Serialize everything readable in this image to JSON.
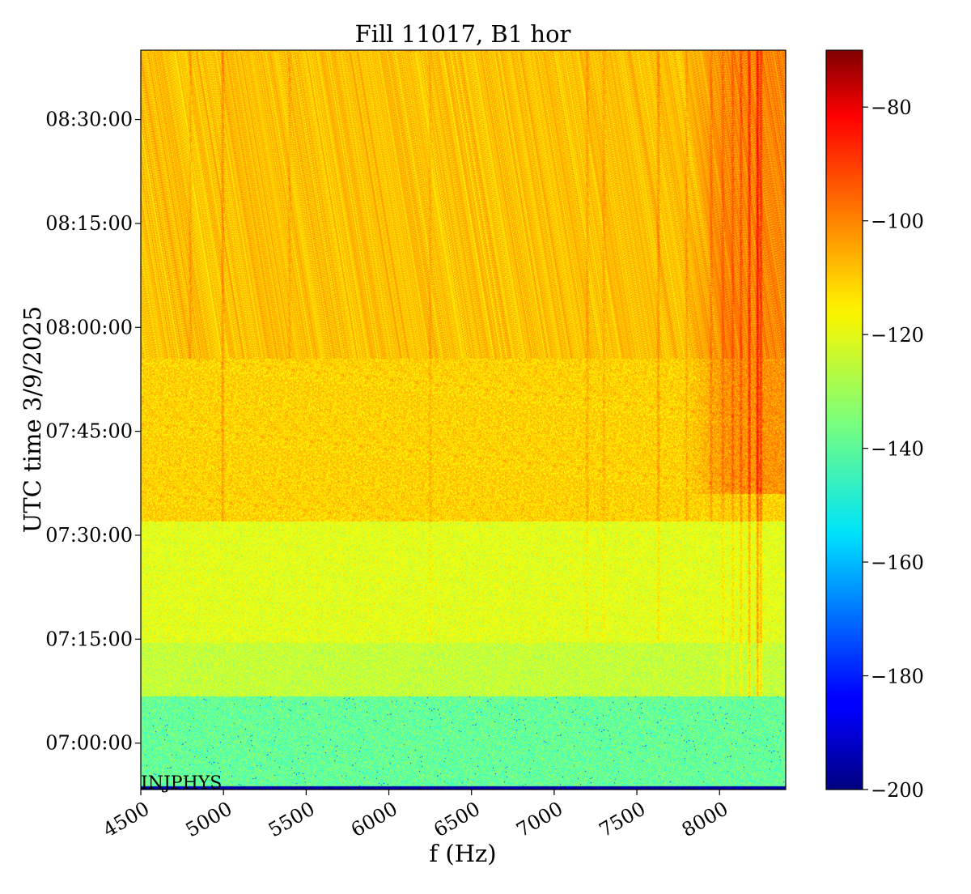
{
  "chart_data": {
    "type": "heatmap",
    "title": "Fill 11017, B1 hor",
    "xlabel": "f (Hz)",
    "ylabel": "UTC time 3/9/2025",
    "annotation": "INJPHYS",
    "x_ticks": [
      4500,
      5000,
      5500,
      6000,
      6500,
      7000,
      7500,
      8000
    ],
    "xlim": [
      4500,
      8400
    ],
    "y_ticks": [
      {
        "value": 0,
        "label": "07:00:00"
      },
      {
        "value": 15,
        "label": "07:15:00"
      },
      {
        "value": 30,
        "label": "07:30:00"
      },
      {
        "value": 45,
        "label": "07:45:00"
      },
      {
        "value": 60,
        "label": "08:00:00"
      },
      {
        "value": 75,
        "label": "08:15:00"
      },
      {
        "value": 90,
        "label": "08:30:00"
      }
    ],
    "y_unit": "minutes after 07:00:00 UTC",
    "ylim": [
      -6.7,
      100
    ],
    "colorbar": {
      "colormap": "jet",
      "range": [
        -200,
        -70
      ],
      "ticks": [
        -80,
        -100,
        -120,
        -140,
        -160,
        -180,
        -200
      ]
    },
    "grid": false,
    "time_bands": [
      {
        "t_start": -6.7,
        "t_end": -6.2,
        "level": -195
      },
      {
        "t_start": -6.2,
        "t_end": 6.7,
        "level": -138
      },
      {
        "t_start": 6.7,
        "t_end": 14.5,
        "level": -126
      },
      {
        "t_start": 14.5,
        "t_end": 32,
        "level": -122
      },
      {
        "t_start": 32,
        "t_end": 55.5,
        "level": -113
      },
      {
        "t_start": 55.5,
        "t_end": 100,
        "level": -111
      }
    ],
    "spectral_lines": [
      {
        "f": 4800,
        "boost": 5,
        "t_start": 55.5,
        "t_end": 100
      },
      {
        "f": 4995,
        "boost": 8,
        "t_start": 32,
        "t_end": 100
      },
      {
        "f": 5400,
        "boost": 4,
        "t_start": 55.5,
        "t_end": 100
      },
      {
        "f": 6250,
        "boost": 4,
        "t_start": 14.5,
        "t_end": 100
      },
      {
        "f": 7200,
        "boost": 5,
        "t_start": 14.5,
        "t_end": 100
      },
      {
        "f": 7300,
        "boost": 4,
        "t_start": 14.5,
        "t_end": 100
      },
      {
        "f": 7630,
        "boost": 7,
        "t_start": 14.5,
        "t_end": 100
      },
      {
        "f": 7800,
        "boost": 5,
        "t_start": 32,
        "t_end": 100
      },
      {
        "f": 7950,
        "boost": 6,
        "t_start": 32,
        "t_end": 100
      },
      {
        "f": 8020,
        "boost": 6,
        "t_start": 6.7,
        "t_end": 100
      },
      {
        "f": 8080,
        "boost": 7,
        "t_start": 6.7,
        "t_end": 100
      },
      {
        "f": 8130,
        "boost": 9,
        "t_start": 6.7,
        "t_end": 100
      },
      {
        "f": 8180,
        "boost": 14,
        "t_start": 6.7,
        "t_end": 100
      },
      {
        "f": 8230,
        "boost": 18,
        "t_start": 6.7,
        "t_end": 100
      },
      {
        "f": 8250,
        "boost": 12,
        "t_start": 6.7,
        "t_end": 100
      }
    ],
    "high_frequency_excess": [
      {
        "f_start": 7800,
        "f_end": 8400,
        "t_start": 36,
        "t_end": 100,
        "boost": 8
      }
    ]
  }
}
